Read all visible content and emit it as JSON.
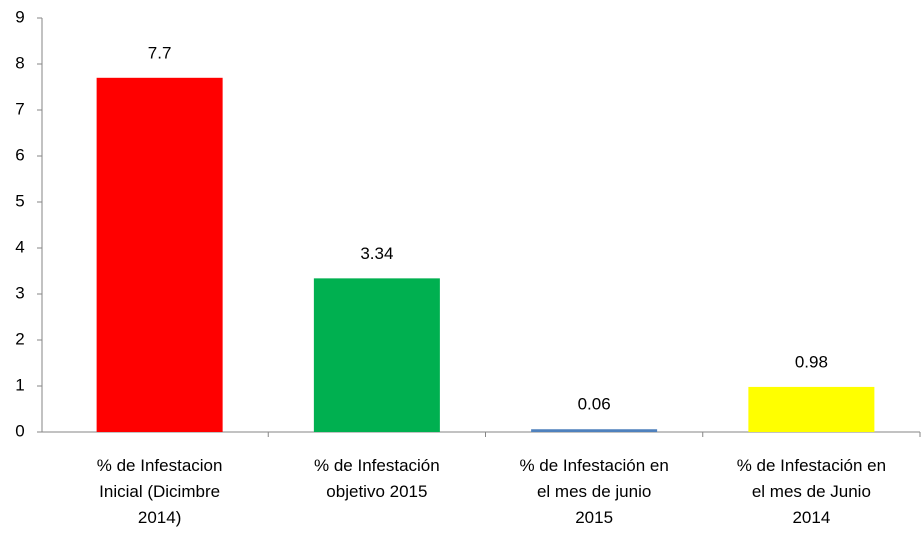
{
  "chart_data": {
    "type": "bar",
    "categories": [
      "% de Infestacion Inicial (Dicimbre 2014)",
      "% de Infestación objetivo 2015",
      "% de Infestación en el mes de junio 2015",
      "% de Infestación en el mes de Junio 2014"
    ],
    "values": [
      7.7,
      3.34,
      0.06,
      0.98
    ],
    "colors": [
      "#ff0000",
      "#00b050",
      "#4f81bd",
      "#ffff00"
    ],
    "ylim": [
      0,
      9
    ],
    "yticks": [
      0,
      1,
      2,
      3,
      4,
      5,
      6,
      7,
      8,
      9
    ],
    "grid": false
  }
}
